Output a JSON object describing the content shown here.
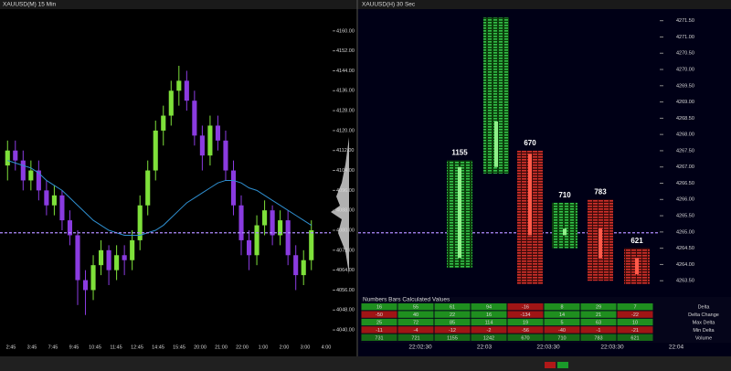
{
  "left_chart": {
    "type": "candlestick",
    "title": "XAUUSD(M) 15 Min",
    "candles": [
      [
        4106,
        4116,
        4100,
        4112
      ],
      [
        4112,
        4116,
        4104,
        4108
      ],
      [
        4108,
        4112,
        4096,
        4100
      ],
      [
        4100,
        4108,
        4096,
        4104
      ],
      [
        4104,
        4108,
        4092,
        4096
      ],
      [
        4096,
        4100,
        4086,
        4090
      ],
      [
        4090,
        4098,
        4086,
        4094
      ],
      [
        4094,
        4096,
        4080,
        4084
      ],
      [
        4084,
        4088,
        4074,
        4078
      ],
      [
        4078,
        4080,
        4050,
        4060
      ],
      [
        4060,
        4064,
        4046,
        4056
      ],
      [
        4056,
        4070,
        4052,
        4066
      ],
      [
        4066,
        4076,
        4062,
        4072
      ],
      [
        4072,
        4074,
        4058,
        4064
      ],
      [
        4064,
        4074,
        4060,
        4070
      ],
      [
        4070,
        4074,
        4062,
        4068
      ],
      [
        4068,
        4080,
        4064,
        4076
      ],
      [
        4076,
        4094,
        4072,
        4090
      ],
      [
        4090,
        4108,
        4086,
        4104
      ],
      [
        4104,
        4124,
        4100,
        4120
      ],
      [
        4120,
        4130,
        4114,
        4126
      ],
      [
        4126,
        4140,
        4122,
        4136
      ],
      [
        4136,
        4146,
        4130,
        4140
      ],
      [
        4140,
        4144,
        4128,
        4132
      ],
      [
        4132,
        4136,
        4114,
        4118
      ],
      [
        4118,
        4122,
        4104,
        4110
      ],
      [
        4110,
        4126,
        4106,
        4122
      ],
      [
        4122,
        4126,
        4112,
        4116
      ],
      [
        4116,
        4120,
        4100,
        4104
      ],
      [
        4104,
        4108,
        4086,
        4090
      ],
      [
        4090,
        4094,
        4070,
        4076
      ],
      [
        4076,
        4080,
        4064,
        4070
      ],
      [
        4070,
        4086,
        4066,
        4082
      ],
      [
        4082,
        4092,
        4078,
        4088
      ],
      [
        4088,
        4090,
        4074,
        4078
      ],
      [
        4078,
        4088,
        4074,
        4084
      ],
      [
        4084,
        4088,
        4066,
        4070
      ],
      [
        4070,
        4074,
        4056,
        4062
      ],
      [
        4062,
        4072,
        4058,
        4068
      ],
      [
        4068,
        4084,
        4064,
        4080
      ]
    ],
    "ma": [
      4108,
      4107,
      4106,
      4105,
      4103,
      4100,
      4098,
      4096,
      4093,
      4090,
      4087,
      4084,
      4082,
      4080,
      4079,
      4078,
      4078,
      4078,
      4079,
      4080,
      4082,
      4085,
      4088,
      4091,
      4093,
      4095,
      4097,
      4099,
      4100,
      4100,
      4099,
      4097,
      4096,
      4094,
      4092,
      4090,
      4088,
      4086,
      4084,
      4082
    ],
    "last_price": 4079,
    "ylim": [
      4036,
      4168
    ],
    "yticks": [
      {
        "value": 4160,
        "label": "4160.00"
      },
      {
        "value": 4152,
        "label": "4152.00"
      },
      {
        "value": 4144,
        "label": "4144.00"
      },
      {
        "value": 4136,
        "label": "4136.00"
      },
      {
        "value": 4128,
        "label": "4128.00"
      },
      {
        "value": 4120,
        "label": "4120.00"
      },
      {
        "value": 4112,
        "label": "4112.00"
      },
      {
        "value": 4104,
        "label": "4104.00"
      },
      {
        "value": 4096,
        "label": "4096.00"
      },
      {
        "value": 4088,
        "label": "4088.00"
      },
      {
        "value": 4080,
        "label": "4080.00"
      },
      {
        "value": 4072,
        "label": "4072.00"
      },
      {
        "value": 4064,
        "label": "4064.00"
      },
      {
        "value": 4056,
        "label": "4056.00"
      },
      {
        "value": 4048,
        "label": "4048.00"
      },
      {
        "value": 4040,
        "label": "4040.00"
      }
    ],
    "xlabels": [
      "2:45",
      "3:45",
      "7:45",
      "9:45",
      "10:45",
      "11:45",
      "12:45",
      "14:45",
      "15:45",
      "20:00",
      "21:00",
      "22:00",
      "1:00",
      "2:00",
      "3:00",
      "4:00"
    ],
    "up_color": "#7ee03a",
    "down_color": "#8a3be0",
    "ma_color": "#2f8fd0",
    "last_color": "#b08cff"
  },
  "right_chart": {
    "type": "footprint",
    "title": "XAUUSD(H) 30 Sec",
    "columns": [
      {
        "open": 4264.2,
        "high": 4267.2,
        "low": 4263.9,
        "close": 4267.0,
        "volume": 1155
      },
      {
        "open": 4267.0,
        "high": 4271.6,
        "low": 4266.8,
        "close": 4268.4,
        "volume": null
      },
      {
        "open": 4267.4,
        "high": 4267.5,
        "low": 4263.4,
        "close": 4264.9,
        "volume": 670
      },
      {
        "open": 4264.9,
        "high": 4265.9,
        "low": 4264.5,
        "close": 4265.1,
        "volume": 710
      },
      {
        "open": 4265.1,
        "high": 4266.0,
        "low": 4263.5,
        "close": 4264.2,
        "volume": 783
      },
      {
        "open": 4264.2,
        "high": 4264.5,
        "low": 4263.4,
        "close": 4263.7,
        "volume": 621
      }
    ],
    "ylim": [
      4263.0,
      4271.8
    ],
    "yticks": [
      {
        "value": 4271.5,
        "label": "4271.50"
      },
      {
        "value": 4271,
        "label": "4271.00"
      },
      {
        "value": 4270.5,
        "label": "4270.50"
      },
      {
        "value": 4270,
        "label": "4270.00"
      },
      {
        "value": 4269.5,
        "label": "4269.50"
      },
      {
        "value": 4269,
        "label": "4269.00"
      },
      {
        "value": 4268.5,
        "label": "4268.50"
      },
      {
        "value": 4268,
        "label": "4268.00"
      },
      {
        "value": 4267.5,
        "label": "4267.50"
      },
      {
        "value": 4267,
        "label": "4267.00"
      },
      {
        "value": 4266.5,
        "label": "4266.50"
      },
      {
        "value": 4266,
        "label": "4266.00"
      },
      {
        "value": 4265.5,
        "label": "4265.50"
      },
      {
        "value": 4265,
        "label": "4265.00"
      },
      {
        "value": 4264.5,
        "label": "4264.50"
      },
      {
        "value": 4264,
        "label": "4264.00"
      },
      {
        "value": 4263.5,
        "label": "4263.50"
      }
    ],
    "xlabels": [
      "22:02:30",
      "22:03",
      "22:03:30",
      "22:03:30",
      "22:04"
    ]
  },
  "table": {
    "title": "Numbers Bars Calculated Values",
    "rows": [
      {
        "label": "Delta",
        "values": [
          16,
          55,
          61,
          94,
          -16,
          8,
          29,
          7
        ]
      },
      {
        "label": "Delta Change",
        "values": [
          -50,
          40,
          22,
          16,
          -134,
          14,
          21,
          -22
        ]
      },
      {
        "label": "Max Delta",
        "values": [
          25,
          72,
          85,
          114,
          19,
          5,
          63,
          10
        ]
      },
      {
        "label": "Min Delta",
        "values": [
          -11,
          -4,
          -12,
          -2,
          -56,
          -40,
          -1,
          -21
        ]
      },
      {
        "label": "Volume",
        "values": [
          731,
          721,
          1155,
          1242,
          670,
          710,
          783,
          621
        ]
      }
    ]
  }
}
